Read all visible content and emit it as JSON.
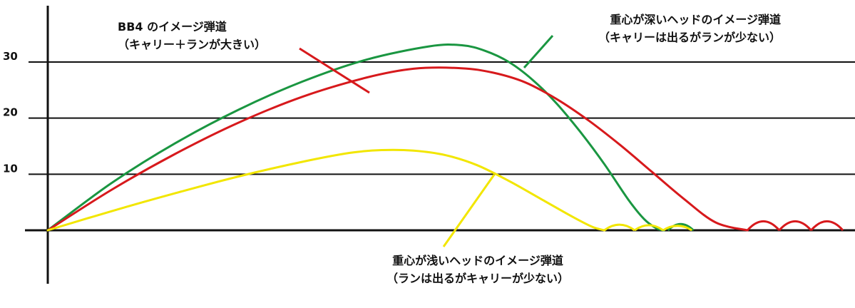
{
  "colors": {
    "background": "#ffffff",
    "axis": "#111111",
    "grid": "#111111"
  },
  "chart_data": {
    "type": "line",
    "title": "",
    "xlabel": "",
    "ylabel": "",
    "ylim": [
      -10,
      40
    ],
    "xlim": [
      0,
      100
    ],
    "grid": "horizontal",
    "yticks": [
      {
        "value": 10,
        "label": "10"
      },
      {
        "value": 20,
        "label": "20"
      },
      {
        "value": 30,
        "label": "30"
      }
    ],
    "series": [
      {
        "key": "deep",
        "color": "#1a9641",
        "x": [
          0,
          8,
          16,
          24,
          32,
          40,
          48,
          52,
          55,
          58,
          61,
          64,
          67,
          70,
          73,
          75,
          76.5,
          77.5
        ],
        "y": [
          0,
          8.4,
          15.5,
          21.5,
          26.5,
          30.4,
          32.8,
          33.0,
          32.0,
          30.0,
          26.8,
          22.6,
          17.5,
          11.8,
          5.5,
          2.0,
          0.4,
          0
        ],
        "bounces": [
          [
            78.0,
            81.2,
            1.1
          ]
        ]
      },
      {
        "key": "bb4",
        "color": "#d7191c",
        "x": [
          0,
          8,
          16,
          24,
          32,
          40,
          46,
          52,
          56,
          60,
          64,
          68,
          72,
          76,
          80,
          84,
          88
        ],
        "y": [
          0,
          7.2,
          13.6,
          19.2,
          23.8,
          27.2,
          28.8,
          28.9,
          28.1,
          26.4,
          23.4,
          19.6,
          15.2,
          10.4,
          5.6,
          1.4,
          0
        ],
        "bounces": [
          [
            88.0,
            92.0,
            1.6
          ],
          [
            92.0,
            96.0,
            1.6
          ],
          [
            96.0,
            100.0,
            1.6
          ]
        ]
      },
      {
        "key": "shallow",
        "color": "#f2e600",
        "x": [
          0,
          8,
          16,
          24,
          32,
          38,
          42,
          46,
          50,
          54,
          58,
          62,
          66,
          68.5,
          70
        ],
        "y": [
          0,
          3.4,
          6.6,
          9.6,
          12.2,
          13.8,
          14.3,
          14.2,
          13.4,
          11.6,
          8.8,
          5.6,
          2.4,
          0.6,
          0
        ],
        "bounces": [
          [
            70.0,
            73.8,
            1.0
          ],
          [
            73.8,
            77.4,
            0.9
          ],
          [
            77.4,
            81.0,
            0.8
          ]
        ]
      }
    ],
    "annotations": [
      {
        "key": "bb4",
        "line1": "BB4 のイメージ弾道",
        "line2": "（キャリー＋ランが大きい）",
        "align": "start",
        "color": "#d7191c"
      },
      {
        "key": "deep",
        "line1": "重心が深いヘッドのイメージ弾道",
        "line2": "（キャリーは出るがランが少ない）",
        "align": "end",
        "color": "#1a9641"
      },
      {
        "key": "shallow",
        "line1": "重心が浅いヘッドのイメージ弾道",
        "line2": "（ランは出るがキャリーが少ない）",
        "align": "middle",
        "color": "#f2e600"
      }
    ]
  }
}
